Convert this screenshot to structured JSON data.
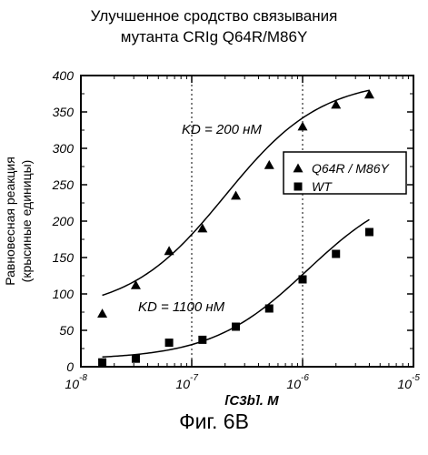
{
  "title": {
    "line1": "Улучшенное сродство связывания",
    "line2": "мутанта CRIg Q64R/M86Y"
  },
  "figure_caption": "Фиг. 6В",
  "chart_data": {
    "type": "scatter",
    "x_scale": "log10",
    "xlim": [
      1e-08,
      1e-05
    ],
    "ylim": [
      0,
      400
    ],
    "xlabel": "[C3b], M",
    "ylabel_line1": "Равновесная реакция",
    "ylabel_line2": "(крысиные единицы)",
    "y_ticks": [
      0,
      50,
      100,
      150,
      200,
      250,
      300,
      350,
      400
    ],
    "x_ticks": [
      {
        "value": 1e-08,
        "base": "10",
        "exp": "-8"
      },
      {
        "value": 1e-07,
        "base": "10",
        "exp": "-7"
      },
      {
        "value": 1e-06,
        "base": "10",
        "exp": "-6"
      },
      {
        "value": 1e-05,
        "base": "10",
        "exp": "-5"
      }
    ],
    "grid": "vertical dashed at decades",
    "legend_position": "right",
    "series": [
      {
        "name": "Q64R / M86Y",
        "marker": "triangle",
        "annotation": "KD = 200 нМ",
        "points": [
          [
            1.56e-08,
            73
          ],
          [
            3.13e-08,
            112
          ],
          [
            6.25e-08,
            159
          ],
          [
            1.25e-07,
            190
          ],
          [
            2.5e-07,
            235
          ],
          [
            5e-07,
            277
          ],
          [
            1e-06,
            330
          ],
          [
            2e-06,
            360
          ],
          [
            4e-06,
            374
          ]
        ],
        "fit": {
          "bottom": 75,
          "top": 395,
          "kd": 2e-07
        }
      },
      {
        "name": "WT",
        "marker": "square",
        "annotation": "KD = 1100 нМ",
        "points": [
          [
            1.56e-08,
            6
          ],
          [
            3.13e-08,
            11
          ],
          [
            6.25e-08,
            33
          ],
          [
            1.25e-07,
            37
          ],
          [
            2.5e-07,
            55
          ],
          [
            5e-07,
            80
          ],
          [
            1e-06,
            120
          ],
          [
            2e-06,
            155
          ],
          [
            4e-06,
            185
          ]
        ],
        "fit": {
          "bottom": 10,
          "top": 255,
          "kd": 1.1e-06
        }
      }
    ]
  }
}
